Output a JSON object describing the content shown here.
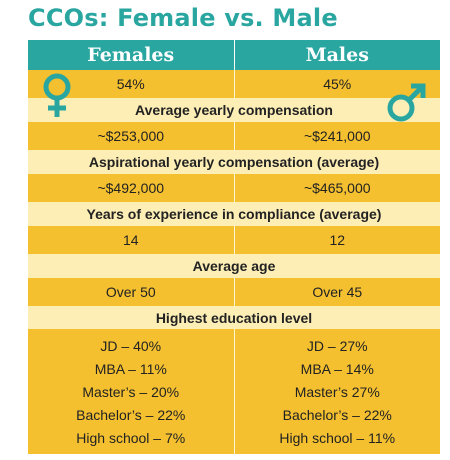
{
  "title": "CCOs: Female vs. Male",
  "header": {
    "left": "Females",
    "right": "Males"
  },
  "share": {
    "female": "54%",
    "male": "45%"
  },
  "avg_comp": {
    "label": "Average yearly compensation",
    "female": "~$253,000",
    "male": "~$241,000"
  },
  "asp_comp": {
    "label": "Aspirational yearly compensation (average)",
    "female": "~$492,000",
    "male": "~$465,000"
  },
  "experience": {
    "label": "Years of experience in compliance (average)",
    "female": "14",
    "male": "12"
  },
  "age": {
    "label": "Average age",
    "female": "Over 50",
    "male": "Over 45"
  },
  "education": {
    "label": "Highest education level",
    "female": [
      "JD – 40%",
      "MBA – 11%",
      "Master’s – 20%",
      "Bachelor’s – 22%",
      "High school – 7%"
    ],
    "male": [
      "JD – 27%",
      "MBA – 14%",
      "Master’s 27%",
      "Bachelor’s – 22%",
      "High school – 11%"
    ]
  },
  "icons": {
    "female": "female-symbol-icon",
    "male": "male-symbol-icon"
  },
  "colors": {
    "teal": "#2aa6a1",
    "yellow": "#f4c030",
    "cream": "#fdeeb6"
  }
}
